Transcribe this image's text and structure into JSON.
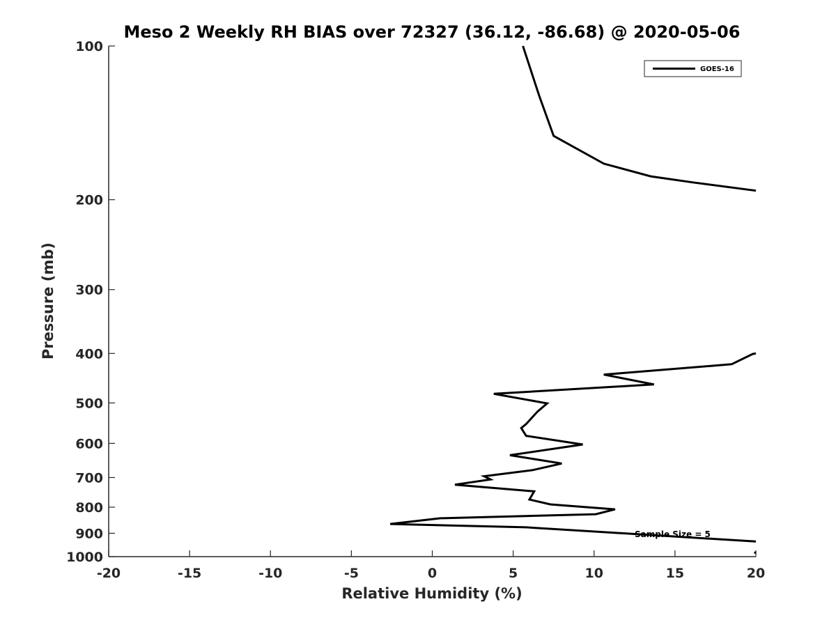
{
  "chart_data": {
    "type": "line",
    "title": "Meso 2 Weekly RH BIAS over 72327 (36.12, -86.68) @ 2020-05-06",
    "xlabel": "Relative Humidity (%)",
    "ylabel": "Pressure (mb)",
    "xlim": [
      -20,
      20
    ],
    "ylim": [
      100,
      1000
    ],
    "y_scale": "log",
    "y_direction": "reversed",
    "xticks": [
      -20,
      -15,
      -10,
      -5,
      0,
      5,
      10,
      15,
      20
    ],
    "yticks": [
      100,
      200,
      300,
      400,
      500,
      600,
      700,
      800,
      900,
      1000
    ],
    "grid": false,
    "legend_position": "top-right",
    "annotation": "Sample Size = 5",
    "series": [
      {
        "name": "GOES-16",
        "color": "#000000",
        "segments": [
          [
            {
              "x": 5.6,
              "y": 100
            },
            {
              "x": 6.6,
              "y": 125
            },
            {
              "x": 7.5,
              "y": 150
            },
            {
              "x": 10.6,
              "y": 170
            },
            {
              "x": 13.5,
              "y": 180
            },
            {
              "x": 16.1,
              "y": 185
            },
            {
              "x": 20.0,
              "y": 192
            }
          ],
          [
            {
              "x": 20.0,
              "y": 400
            },
            {
              "x": 19.8,
              "y": 401
            },
            {
              "x": 18.5,
              "y": 420
            },
            {
              "x": 10.6,
              "y": 440
            },
            {
              "x": 13.7,
              "y": 460
            },
            {
              "x": 3.8,
              "y": 480
            },
            {
              "x": 7.1,
              "y": 501
            },
            {
              "x": 6.5,
              "y": 520
            },
            {
              "x": 5.8,
              "y": 550
            },
            {
              "x": 5.5,
              "y": 560
            },
            {
              "x": 5.8,
              "y": 580
            },
            {
              "x": 9.3,
              "y": 603
            },
            {
              "x": 4.8,
              "y": 633
            },
            {
              "x": 8.0,
              "y": 657
            },
            {
              "x": 6.2,
              "y": 677
            },
            {
              "x": 3.2,
              "y": 696
            },
            {
              "x": 3.6,
              "y": 706
            },
            {
              "x": 1.4,
              "y": 723
            },
            {
              "x": 6.3,
              "y": 745
            },
            {
              "x": 6.0,
              "y": 773
            },
            {
              "x": 7.3,
              "y": 790
            },
            {
              "x": 11.3,
              "y": 808
            },
            {
              "x": 10.1,
              "y": 826
            },
            {
              "x": 0.5,
              "y": 841
            },
            {
              "x": -2.6,
              "y": 863
            },
            {
              "x": 5.8,
              "y": 876
            },
            {
              "x": 20.0,
              "y": 934
            }
          ],
          [
            {
              "x": 19.9,
              "y": 980
            },
            {
              "x": 20.0,
              "y": 984
            }
          ]
        ]
      }
    ]
  }
}
